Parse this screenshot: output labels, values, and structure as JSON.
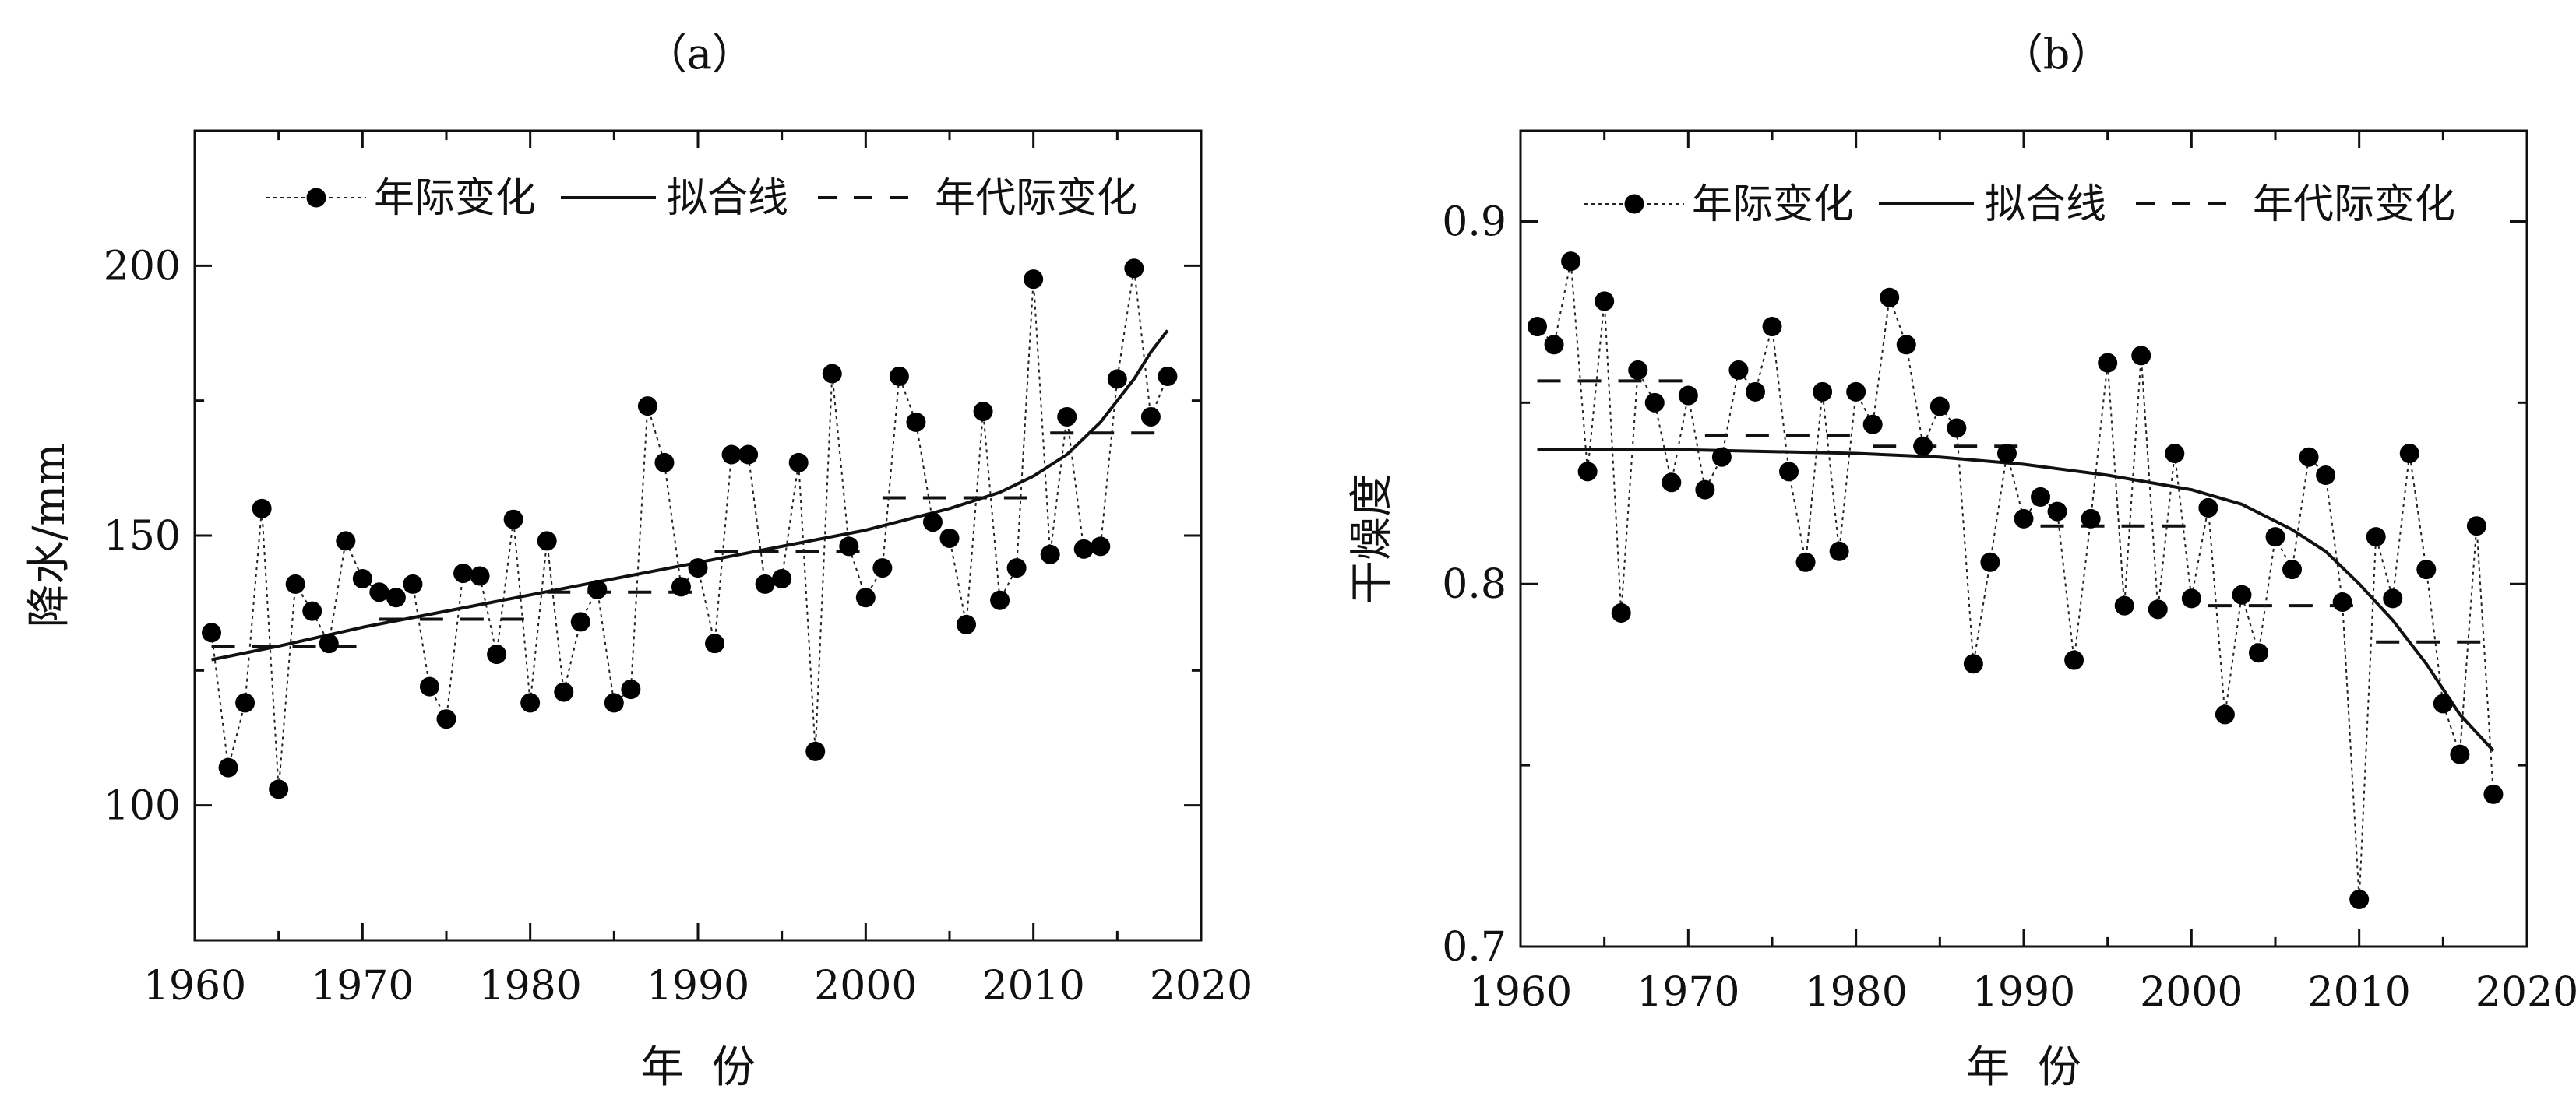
{
  "chart_data": [
    {
      "type": "line",
      "panel_label": "（a）",
      "xlabel": "年  份",
      "ylabel": "降水/mm",
      "xlim": [
        1960,
        2020
      ],
      "ylim": [
        75,
        225
      ],
      "xticks": [
        1960,
        1970,
        1980,
        1990,
        2000,
        2010,
        2020
      ],
      "yticks": [
        100,
        150,
        200
      ],
      "legend": {
        "position": "top",
        "entries": [
          "年际变化",
          "拟合线",
          "年代际变化"
        ]
      },
      "series": [
        {
          "name": "年际变化",
          "style": "dotted-line-with-markers",
          "x": [
            1961,
            1962,
            1963,
            1964,
            1965,
            1966,
            1967,
            1968,
            1969,
            1970,
            1971,
            1972,
            1973,
            1974,
            1975,
            1976,
            1977,
            1978,
            1979,
            1980,
            1981,
            1982,
            1983,
            1984,
            1985,
            1986,
            1987,
            1988,
            1989,
            1990,
            1991,
            1992,
            1993,
            1994,
            1995,
            1996,
            1997,
            1998,
            1999,
            2000,
            2001,
            2002,
            2003,
            2004,
            2005,
            2006,
            2007,
            2008,
            2009,
            2010,
            2011,
            2012,
            2013,
            2014,
            2015,
            2016,
            2017,
            2018
          ],
          "y": [
            132,
            107,
            119,
            155,
            103,
            141,
            136,
            130,
            149,
            142,
            139.5,
            138.5,
            141,
            122,
            116,
            143,
            142.5,
            128,
            153,
            119,
            149,
            121,
            134,
            140,
            119,
            121.5,
            174,
            163.5,
            140.5,
            144,
            130,
            165,
            165,
            141,
            142,
            163.5,
            110,
            180,
            148,
            138.5,
            144,
            179.5,
            171,
            152.5,
            149.5,
            133.5,
            173,
            138,
            144,
            197.5,
            146.5,
            172,
            147.5,
            148,
            179,
            199.5,
            172,
            179.5
          ]
        },
        {
          "name": "拟合线",
          "style": "solid",
          "x": [
            1961,
            1965,
            1970,
            1975,
            1980,
            1985,
            1990,
            1995,
            2000,
            2005,
            2008,
            2010,
            2012,
            2014,
            2016,
            2017,
            2018
          ],
          "y": [
            127,
            129.5,
            133,
            136,
            139,
            142,
            145,
            148,
            151,
            155,
            158,
            161,
            165,
            171,
            179,
            184,
            188
          ]
        },
        {
          "name": "年代际变化",
          "style": "dashed",
          "segments": [
            {
              "x": [
                1961,
                1970
              ],
              "y": 129.5
            },
            {
              "x": [
                1971,
                1980
              ],
              "y": 134.5
            },
            {
              "x": [
                1981,
                1990
              ],
              "y": 139.5
            },
            {
              "x": [
                1991,
                2000
              ],
              "y": 147
            },
            {
              "x": [
                2001,
                2010
              ],
              "y": 157
            },
            {
              "x": [
                2011,
                2018
              ],
              "y": 169
            }
          ]
        }
      ]
    },
    {
      "type": "line",
      "panel_label": "（b）",
      "xlabel": "年  份",
      "ylabel": "干燥度",
      "xlim": [
        1960,
        2020
      ],
      "ylim": [
        0.7,
        0.925
      ],
      "xticks": [
        1960,
        1970,
        1980,
        1990,
        2000,
        2010,
        2020
      ],
      "yticks": [
        0.7,
        0.8,
        0.9
      ],
      "legend": {
        "position": "top",
        "entries": [
          "年际变化",
          "拟合线",
          "年代际变化"
        ]
      },
      "series": [
        {
          "name": "年际变化",
          "style": "dotted-line-with-markers",
          "x": [
            1961,
            1962,
            1963,
            1964,
            1965,
            1966,
            1967,
            1968,
            1969,
            1970,
            1971,
            1972,
            1973,
            1974,
            1975,
            1976,
            1977,
            1978,
            1979,
            1980,
            1981,
            1982,
            1983,
            1984,
            1985,
            1986,
            1987,
            1988,
            1989,
            1990,
            1991,
            1992,
            1993,
            1994,
            1995,
            1996,
            1997,
            1998,
            1999,
            2000,
            2001,
            2002,
            2003,
            2004,
            2005,
            2006,
            2007,
            2008,
            2009,
            2010,
            2011,
            2012,
            2013,
            2014,
            2015,
            2016,
            2017,
            2018
          ],
          "y": [
            0.871,
            0.866,
            0.889,
            0.831,
            0.878,
            0.792,
            0.859,
            0.85,
            0.828,
            0.852,
            0.826,
            0.835,
            0.859,
            0.853,
            0.871,
            0.831,
            0.806,
            0.853,
            0.809,
            0.853,
            0.844,
            0.879,
            0.866,
            0.838,
            0.849,
            0.843,
            0.778,
            0.806,
            0.836,
            0.818,
            0.824,
            0.82,
            0.779,
            0.818,
            0.861,
            0.794,
            0.863,
            0.793,
            0.836,
            0.796,
            0.821,
            0.764,
            0.797,
            0.781,
            0.813,
            0.804,
            0.835,
            0.83,
            0.795,
            0.713,
            0.813,
            0.796,
            0.836,
            0.804,
            0.767,
            0.753,
            0.816,
            0.742
          ]
        },
        {
          "name": "拟合线",
          "style": "solid",
          "x": [
            1961,
            1970,
            1980,
            1985,
            1990,
            1995,
            2000,
            2003,
            2006,
            2008,
            2010,
            2012,
            2014,
            2016,
            2018
          ],
          "y": [
            0.837,
            0.837,
            0.836,
            0.835,
            0.833,
            0.83,
            0.826,
            0.822,
            0.815,
            0.809,
            0.8,
            0.79,
            0.778,
            0.764,
            0.754
          ]
        },
        {
          "name": "年代际变化",
          "style": "dashed",
          "segments": [
            {
              "x": [
                1961,
                1970
              ],
              "y": 0.856
            },
            {
              "x": [
                1971,
                1980
              ],
              "y": 0.841
            },
            {
              "x": [
                1981,
                1990
              ],
              "y": 0.838
            },
            {
              "x": [
                1991,
                2000
              ],
              "y": 0.816
            },
            {
              "x": [
                2001,
                2010
              ],
              "y": 0.794
            },
            {
              "x": [
                2011,
                2018
              ],
              "y": 0.784
            }
          ]
        }
      ]
    }
  ]
}
